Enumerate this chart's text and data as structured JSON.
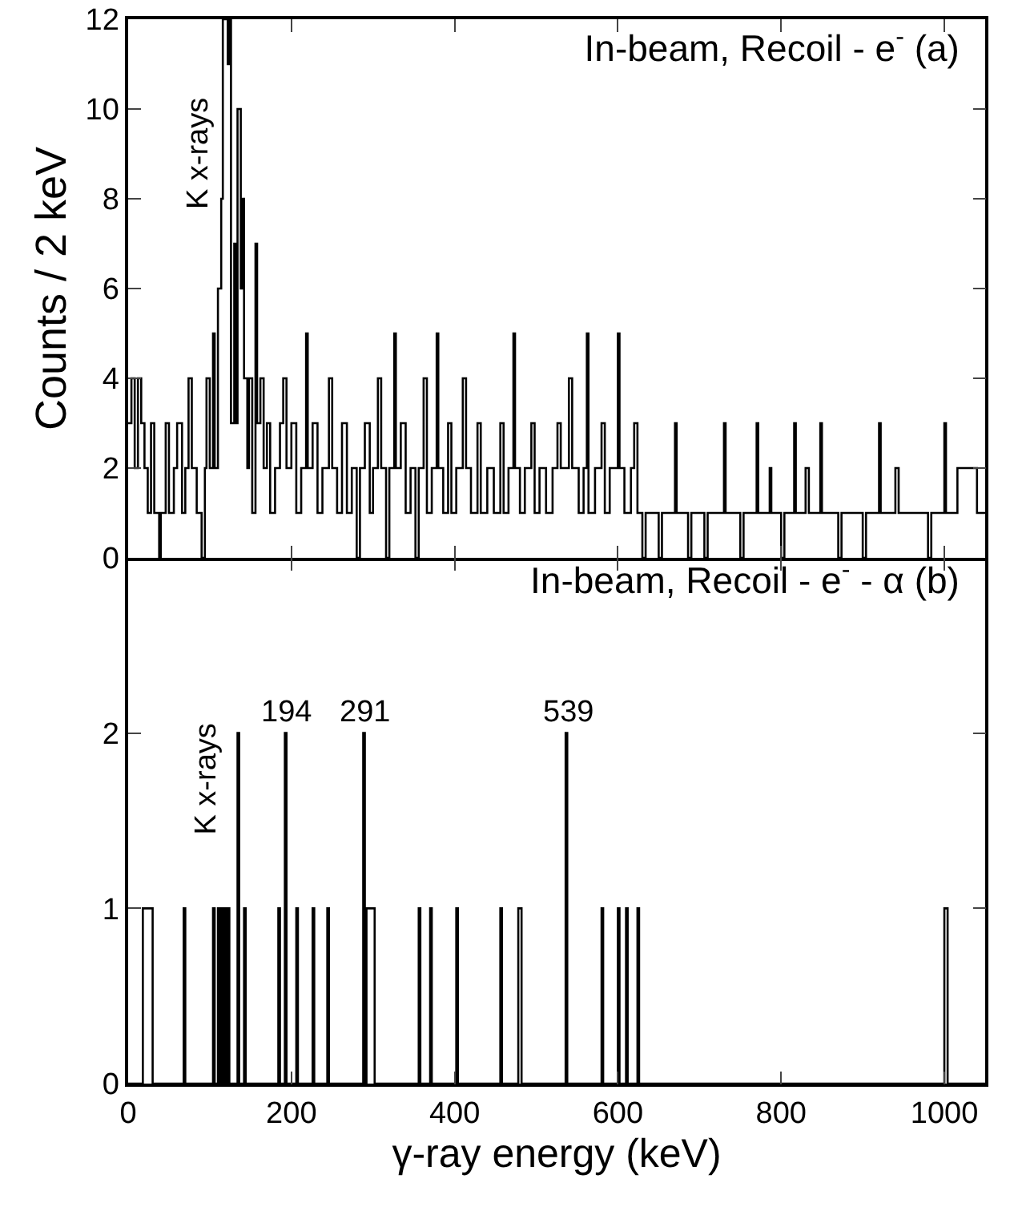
{
  "chart_data": [
    {
      "type": "step",
      "title": "In-beam, Recoil - e$^{-}$ (a)",
      "ylabel": "Counts / 2 keV",
      "x": [
        0,
        4,
        8,
        12,
        16,
        20,
        24,
        28,
        32,
        38,
        40,
        46,
        50,
        56,
        60,
        66,
        70,
        74,
        78,
        84,
        90,
        94,
        96,
        100,
        104,
        106,
        110,
        114,
        116,
        122,
        124,
        126,
        130,
        132,
        134,
        138,
        140,
        142,
        146,
        148,
        152,
        156,
        158,
        162,
        166,
        170,
        174,
        180,
        186,
        190,
        194,
        200,
        206,
        212,
        218,
        220,
        226,
        232,
        238,
        246,
        250,
        256,
        262,
        268,
        274,
        280,
        284,
        290,
        296,
        300,
        306,
        310,
        316,
        320,
        326,
        328,
        334,
        340,
        346,
        352,
        356,
        362,
        366,
        372,
        378,
        380,
        386,
        392,
        396,
        402,
        410,
        414,
        420,
        428,
        432,
        440,
        448,
        456,
        460,
        466,
        472,
        474,
        480,
        486,
        494,
        498,
        504,
        512,
        520,
        526,
        530,
        540,
        544,
        552,
        558,
        562,
        564,
        572,
        580,
        584,
        590,
        600,
        602,
        608,
        616,
        620,
        624,
        630,
        634,
        650,
        654,
        670,
        672,
        686,
        690,
        706,
        710,
        730,
        732,
        750,
        754,
        770,
        772,
        786,
        788,
        800,
        804,
        816,
        818,
        830,
        834,
        848,
        850,
        870,
        874,
        900,
        904,
        920,
        922,
        940,
        944,
        960,
        980,
        984,
        1000,
        1002,
        1016,
        1040,
        1050
      ],
      "series": [
        {
          "color": "#000000",
          "values": [
            3,
            4,
            2,
            4,
            3,
            2,
            1,
            3,
            1,
            0,
            1,
            3,
            1,
            2,
            3,
            1,
            2,
            4,
            2,
            1,
            0,
            2,
            4,
            2,
            5,
            2,
            6,
            8,
            12,
            11,
            12,
            3,
            7,
            3,
            10,
            6,
            8,
            4,
            2,
            4,
            1,
            7,
            3,
            4,
            2,
            3,
            1,
            2,
            3,
            4,
            2,
            3,
            1,
            2,
            5,
            2,
            3,
            1,
            2,
            4,
            2,
            1,
            3,
            1,
            2,
            0,
            2,
            3,
            1,
            2,
            4,
            2,
            0,
            2,
            5,
            2,
            3,
            1,
            2,
            0,
            2,
            4,
            1,
            2,
            5,
            2,
            1,
            3,
            1,
            2,
            4,
            2,
            1,
            3,
            1,
            2,
            1,
            3,
            1,
            2,
            5,
            2,
            1,
            2,
            3,
            1,
            2,
            1,
            2,
            3,
            2,
            4,
            2,
            1,
            2,
            5,
            1,
            2,
            3,
            1,
            2,
            5,
            2,
            1,
            2,
            3,
            1,
            0,
            1,
            0,
            1,
            3,
            1,
            0,
            1,
            0,
            1,
            3,
            1,
            0,
            1,
            3,
            1,
            2,
            1,
            0,
            1,
            3,
            1,
            2,
            1,
            3,
            1,
            0,
            1,
            0,
            1,
            3,
            1,
            2,
            1,
            1,
            0,
            1,
            3,
            1,
            2,
            1,
            1
          ]
        }
      ],
      "xlim": [
        0,
        1050
      ],
      "xticks": [
        0,
        200,
        400,
        600,
        800,
        1000
      ],
      "ylim": [
        0,
        12
      ],
      "yticks": [
        0,
        2,
        4,
        6,
        8,
        10,
        12
      ],
      "tick_labels": "y",
      "annotations": [
        {
          "text": "K x-rays",
          "x": 110,
          "y": 9
        }
      ]
    },
    {
      "type": "step",
      "title": "In-beam, Recoil - e$^{-}$ - α (b)",
      "xlabel": "γ-ray energy (keV)",
      "x": [
        0,
        18,
        30,
        68,
        70,
        104,
        106,
        110,
        112,
        114,
        116,
        118,
        120,
        122,
        124,
        134,
        136,
        142,
        144,
        184,
        186,
        192,
        194,
        206,
        208,
        226,
        228,
        244,
        246,
        288,
        290,
        292,
        302,
        356,
        358,
        370,
        372,
        402,
        404,
        456,
        458,
        478,
        482,
        536,
        538,
        580,
        582,
        600,
        602,
        610,
        612,
        624,
        626,
        1000,
        1004,
        1050
      ],
      "series": [
        {
          "color": "#000000",
          "values": [
            0,
            1,
            0,
            1,
            0,
            1,
            0,
            1,
            0,
            1,
            0,
            1,
            0,
            1,
            0,
            2,
            0,
            1,
            0,
            1,
            0,
            2,
            0,
            1,
            0,
            1,
            0,
            1,
            0,
            2,
            0,
            1,
            0,
            1,
            0,
            1,
            0,
            1,
            0,
            1,
            0,
            1,
            0,
            2,
            0,
            1,
            0,
            1,
            0,
            1,
            0,
            1,
            0,
            1,
            0,
            0
          ]
        }
      ],
      "xlim": [
        0,
        1050
      ],
      "xticks": [
        0,
        200,
        400,
        600,
        800,
        1000
      ],
      "ylim": [
        0,
        3
      ],
      "yticks": [
        0,
        1,
        2
      ],
      "annotations": [
        "K x-rays",
        {
          "text": "194",
          "x": 194,
          "y": 2
        },
        {
          "text": "291",
          "x": 291,
          "y": 2
        },
        {
          "text": "539",
          "x": 539,
          "y": 2
        }
      ]
    }
  ]
}
